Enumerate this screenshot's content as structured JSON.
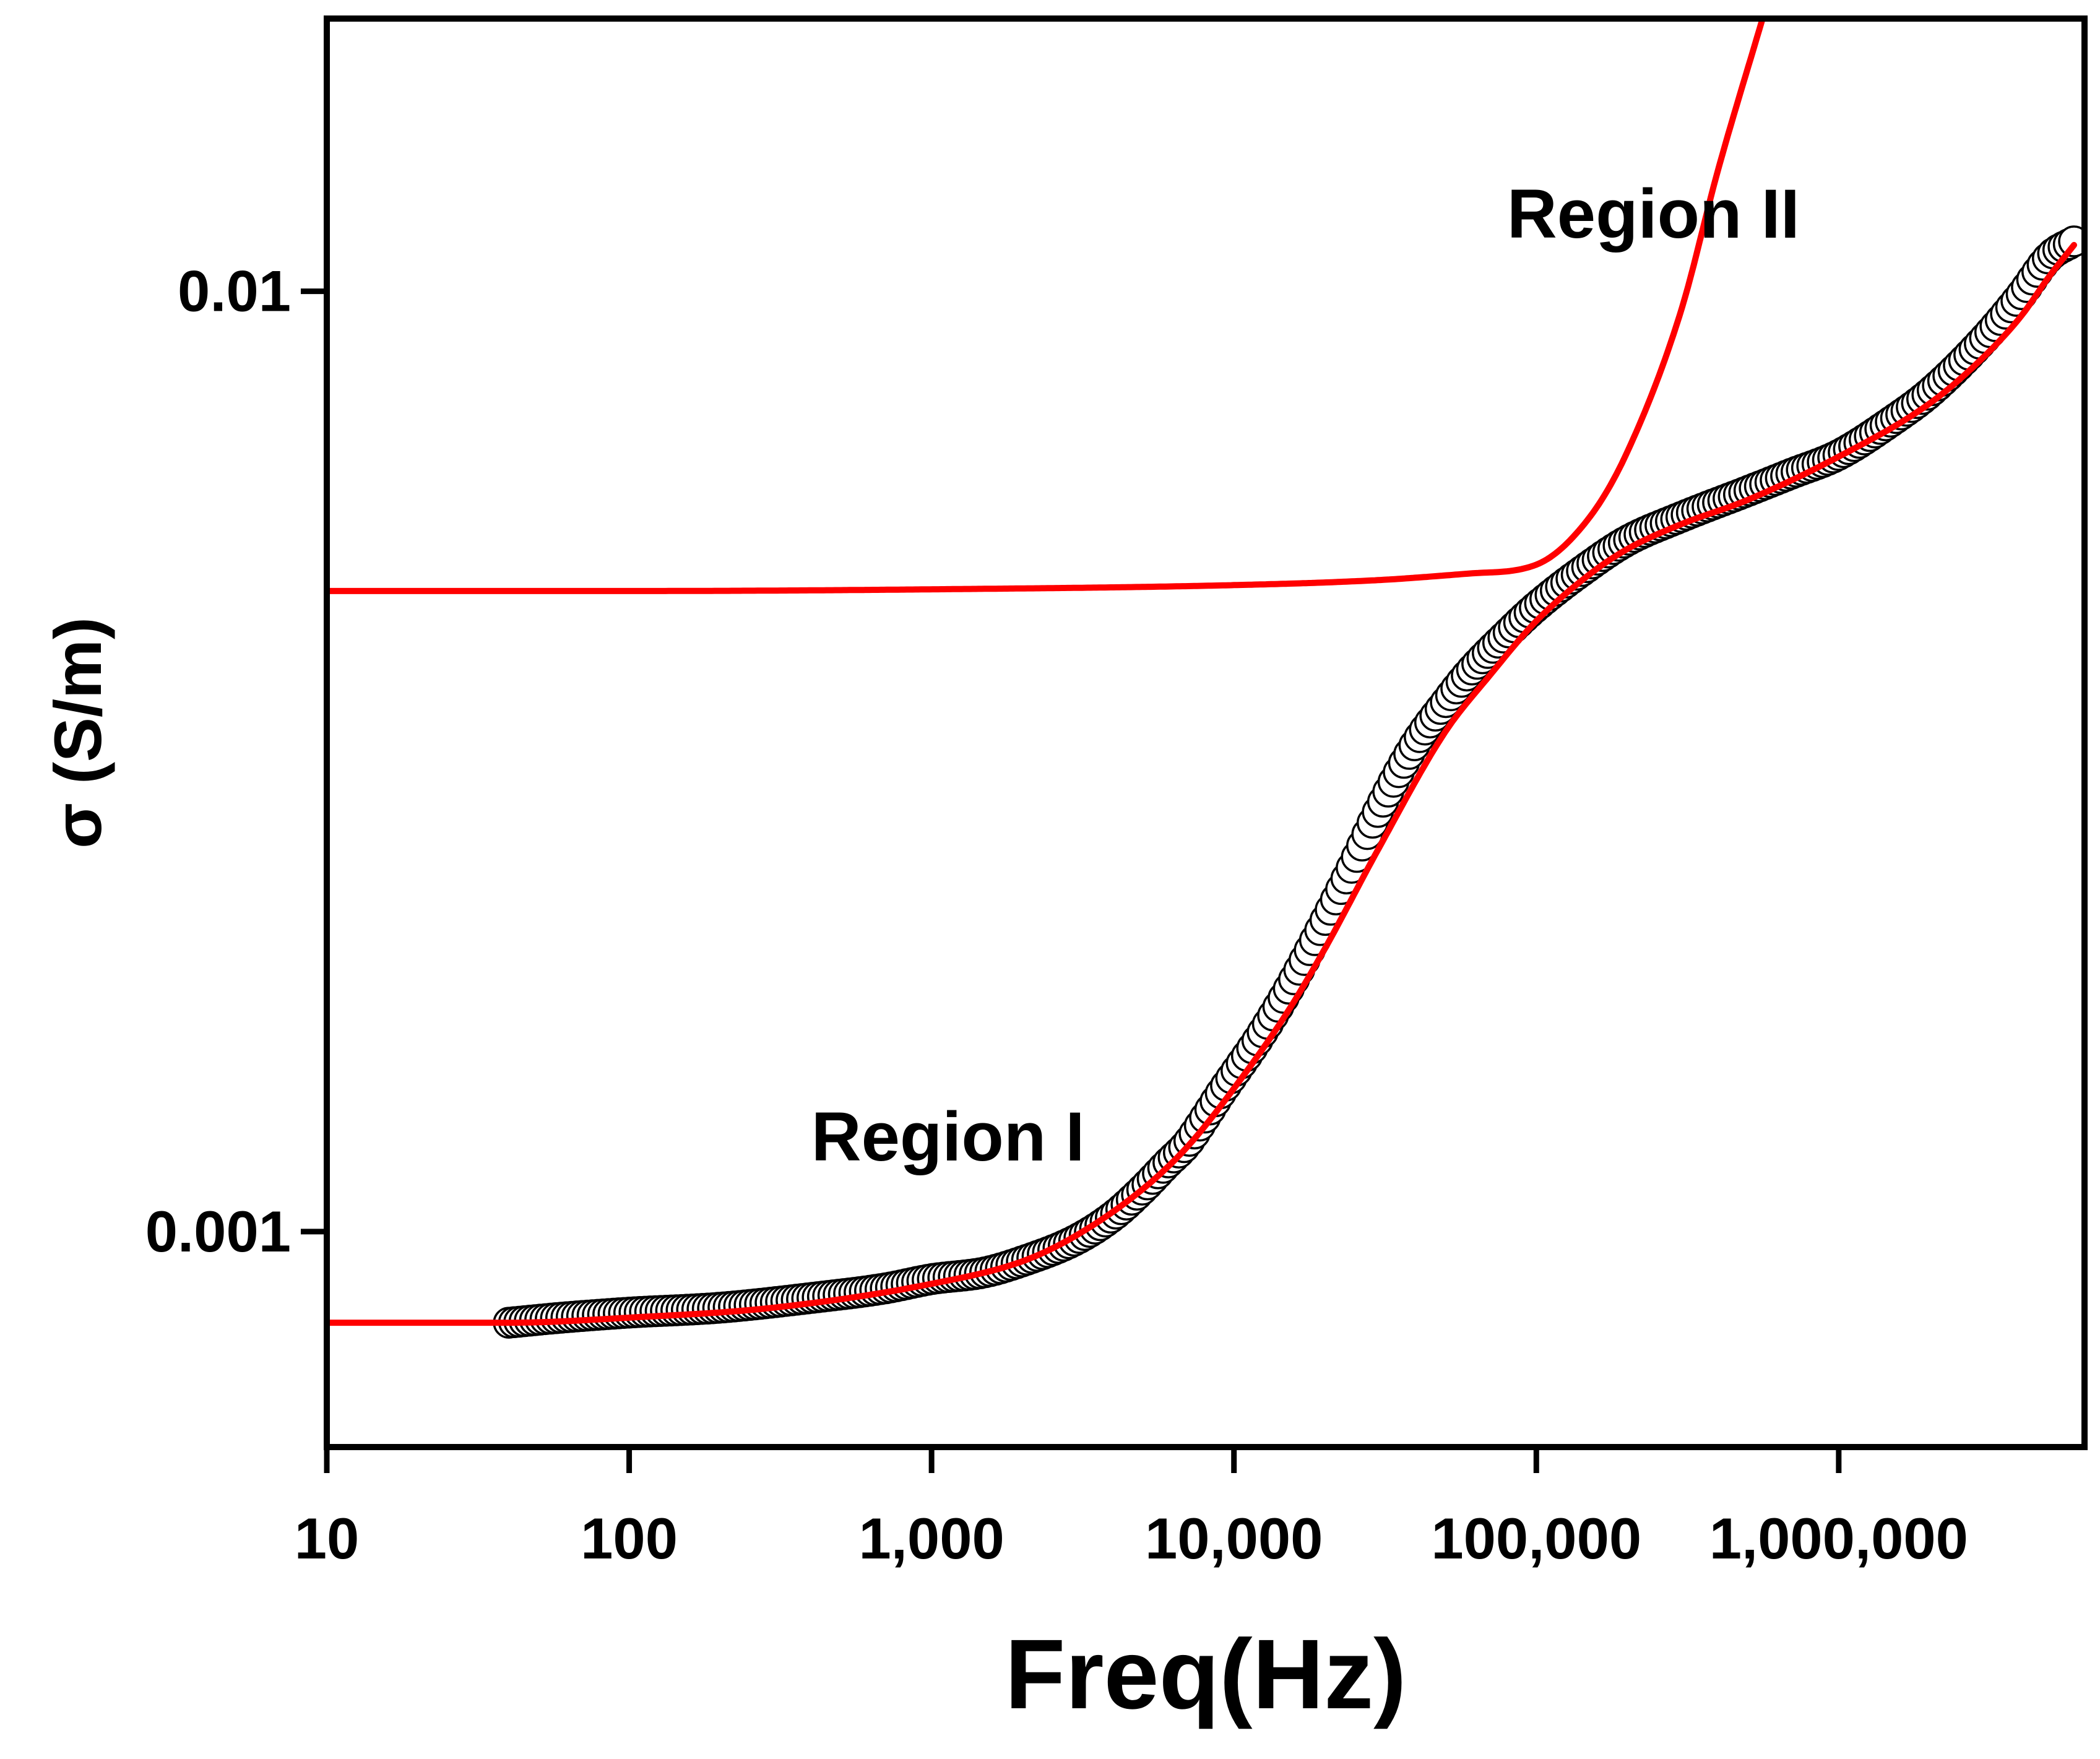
{
  "chart_data": {
    "type": "scatter",
    "title": "",
    "xlabel": "Freq(Hz)",
    "ylabel": "σ (S/m)",
    "xscale": "log",
    "yscale": "log",
    "xlim": [
      10,
      6500000
    ],
    "ylim": [
      0.00059,
      0.0195
    ],
    "grid": false,
    "x_ticks": [
      {
        "value": 10,
        "label": "10"
      },
      {
        "value": 100,
        "label": "100"
      },
      {
        "value": 1000,
        "label": "1,000"
      },
      {
        "value": 10000,
        "label": "10,000"
      },
      {
        "value": 100000,
        "label": "100,000"
      },
      {
        "value": 1000000,
        "label": "1,000,000"
      }
    ],
    "y_ticks": [
      {
        "value": 0.001,
        "label": "0.001"
      },
      {
        "value": 0.01,
        "label": "0.01"
      }
    ],
    "annotations": [
      {
        "text": "Region I",
        "x": 400,
        "y": 0.00119
      },
      {
        "text": "Region II",
        "x": 80000,
        "y": 0.0114
      }
    ],
    "series": [
      {
        "name": "measured",
        "style": "open-circle",
        "color": "#000000",
        "x": [
          40,
          60,
          100,
          200,
          400,
          700,
          1000,
          1500,
          2000,
          3000,
          4000,
          5000,
          6000,
          7000,
          8000,
          9000,
          10000,
          12000,
          15000,
          20000,
          25000,
          30000,
          40000,
          50000,
          60000,
          80000,
          100000,
          150000,
          200000,
          300000,
          500000,
          700000,
          1000000,
          1500000,
          2000000,
          3000000,
          4000000,
          5000000,
          6000000
        ],
        "y": [
          0.0008,
          0.00081,
          0.00082,
          0.00083,
          0.00085,
          0.00087,
          0.00089,
          0.000905,
          0.00093,
          0.00098,
          0.00104,
          0.00111,
          0.00118,
          0.00124,
          0.00132,
          0.0014,
          0.00147,
          0.0016,
          0.0018,
          0.00214,
          0.00247,
          0.0028,
          0.00331,
          0.00365,
          0.00393,
          0.00432,
          0.00462,
          0.00511,
          0.00543,
          0.00575,
          0.00613,
          0.0064,
          0.0067,
          0.00728,
          0.0078,
          0.00887,
          0.0099,
          0.0109,
          0.0113
        ]
      },
      {
        "name": "fit (Region I)",
        "style": "line",
        "color": "#ff0000",
        "x": [
          10,
          40,
          100,
          300,
          1000,
          2000,
          3000,
          5000,
          7000,
          10000,
          15000,
          20000,
          30000,
          50000,
          70000,
          100000,
          150000,
          200000,
          300000,
          500000,
          1000000,
          2000000,
          3000000,
          4000000,
          5000000,
          6000000
        ],
        "y": [
          0.0008,
          0.0008,
          0.00081,
          0.00083,
          0.00088,
          0.00093,
          0.00099,
          0.00111,
          0.00123,
          0.00142,
          0.00171,
          0.002,
          0.00255,
          0.0034,
          0.0039,
          0.00446,
          0.005,
          0.00532,
          0.00565,
          0.006,
          0.00667,
          0.0076,
          0.0085,
          0.0094,
          0.0104,
          0.0112
        ]
      },
      {
        "name": "fit (Region II)",
        "style": "line",
        "color": "#ff0000",
        "x": [
          10,
          100,
          1000,
          10000,
          30000,
          60000,
          100000,
          150000,
          200000,
          300000,
          400000,
          560000
        ],
        "y": [
          0.0048,
          0.0048,
          0.00482,
          0.00487,
          0.00493,
          0.00501,
          0.00512,
          0.00575,
          0.00675,
          0.0095,
          0.0135,
          0.0195
        ]
      }
    ]
  }
}
